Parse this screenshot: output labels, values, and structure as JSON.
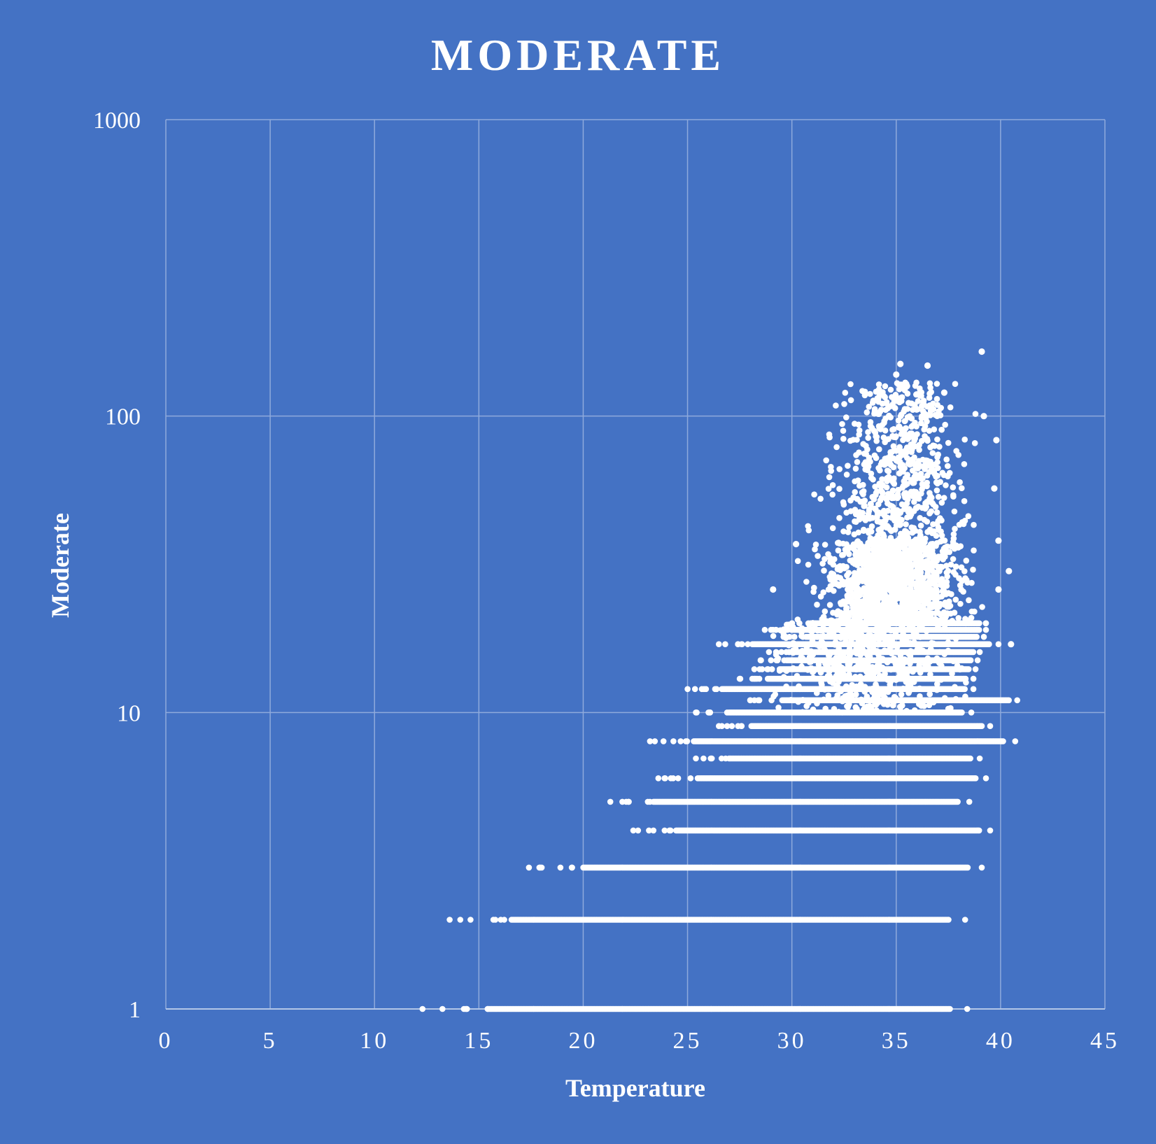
{
  "chart_data": {
    "type": "scatter",
    "title": "MODERATE",
    "xlabel": "Temperature",
    "ylabel": "Moderate",
    "xlim": [
      0,
      45
    ],
    "ylim": [
      1,
      1000
    ],
    "yscale": "log",
    "grid": true,
    "legend": "none",
    "xticks": [
      "0",
      "5",
      "10",
      "15",
      "20",
      "25",
      "30",
      "35",
      "40",
      "45"
    ],
    "yticks": [
      "1",
      "10",
      "100",
      "1000"
    ],
    "colors": {
      "background": "#4472c4",
      "marker": "#ffffff",
      "grid": "#8faadc"
    },
    "bands": [
      {
        "y": 1,
        "x_start": 12.3,
        "x_end": 38.4
      },
      {
        "y": 2,
        "x_start": 13.6,
        "x_end": 38.3
      },
      {
        "y": 3,
        "x_start": 17.4,
        "x_end": 39.1
      },
      {
        "y": 4,
        "x_start": 22.4,
        "x_end": 39.5
      },
      {
        "y": 5,
        "x_start": 21.3,
        "x_end": 38.5
      },
      {
        "y": 6,
        "x_start": 23.6,
        "x_end": 39.3
      },
      {
        "y": 7,
        "x_start": 25.4,
        "x_end": 39.0
      },
      {
        "y": 8,
        "x_start": 23.2,
        "x_end": 40.7
      },
      {
        "y": 9,
        "x_start": 26.5,
        "x_end": 39.5
      },
      {
        "y": 10,
        "x_start": 25.4,
        "x_end": 38.6
      },
      {
        "y": 11,
        "x_start": 28.0,
        "x_end": 40.8
      },
      {
        "y": 12,
        "x_start": 25.0,
        "x_end": 38.7
      },
      {
        "y": 13,
        "x_start": 27.5,
        "x_end": 38.7
      },
      {
        "y": 14,
        "x_start": 28.2,
        "x_end": 38.8
      },
      {
        "y": 15,
        "x_start": 28.5,
        "x_end": 38.9
      },
      {
        "y": 16,
        "x_start": 28.9,
        "x_end": 39.0
      },
      {
        "y": 17,
        "x_start": 26.5,
        "x_end": 39.9
      },
      {
        "y": 18,
        "x_start": 29.6,
        "x_end": 39.2
      },
      {
        "y": 19,
        "x_start": 28.7,
        "x_end": 39.3
      },
      {
        "y": 20,
        "x_start": 30.0,
        "x_end": 39.3
      }
    ],
    "cloud": {
      "y_range": [
        20,
        130
      ],
      "x_center": 34.8,
      "x_spread": 2.2
    },
    "outliers": [
      {
        "x": 39.1,
        "y": 165
      },
      {
        "x": 35.2,
        "y": 150
      },
      {
        "x": 36.5,
        "y": 148
      },
      {
        "x": 35.0,
        "y": 138
      },
      {
        "x": 37.3,
        "y": 120
      },
      {
        "x": 39.2,
        "y": 100
      },
      {
        "x": 39.8,
        "y": 83
      },
      {
        "x": 39.7,
        "y": 57
      },
      {
        "x": 39.9,
        "y": 38
      },
      {
        "x": 40.4,
        "y": 30
      },
      {
        "x": 39.9,
        "y": 26
      },
      {
        "x": 40.5,
        "y": 17
      },
      {
        "x": 30.2,
        "y": 37
      },
      {
        "x": 29.1,
        "y": 26
      }
    ]
  }
}
